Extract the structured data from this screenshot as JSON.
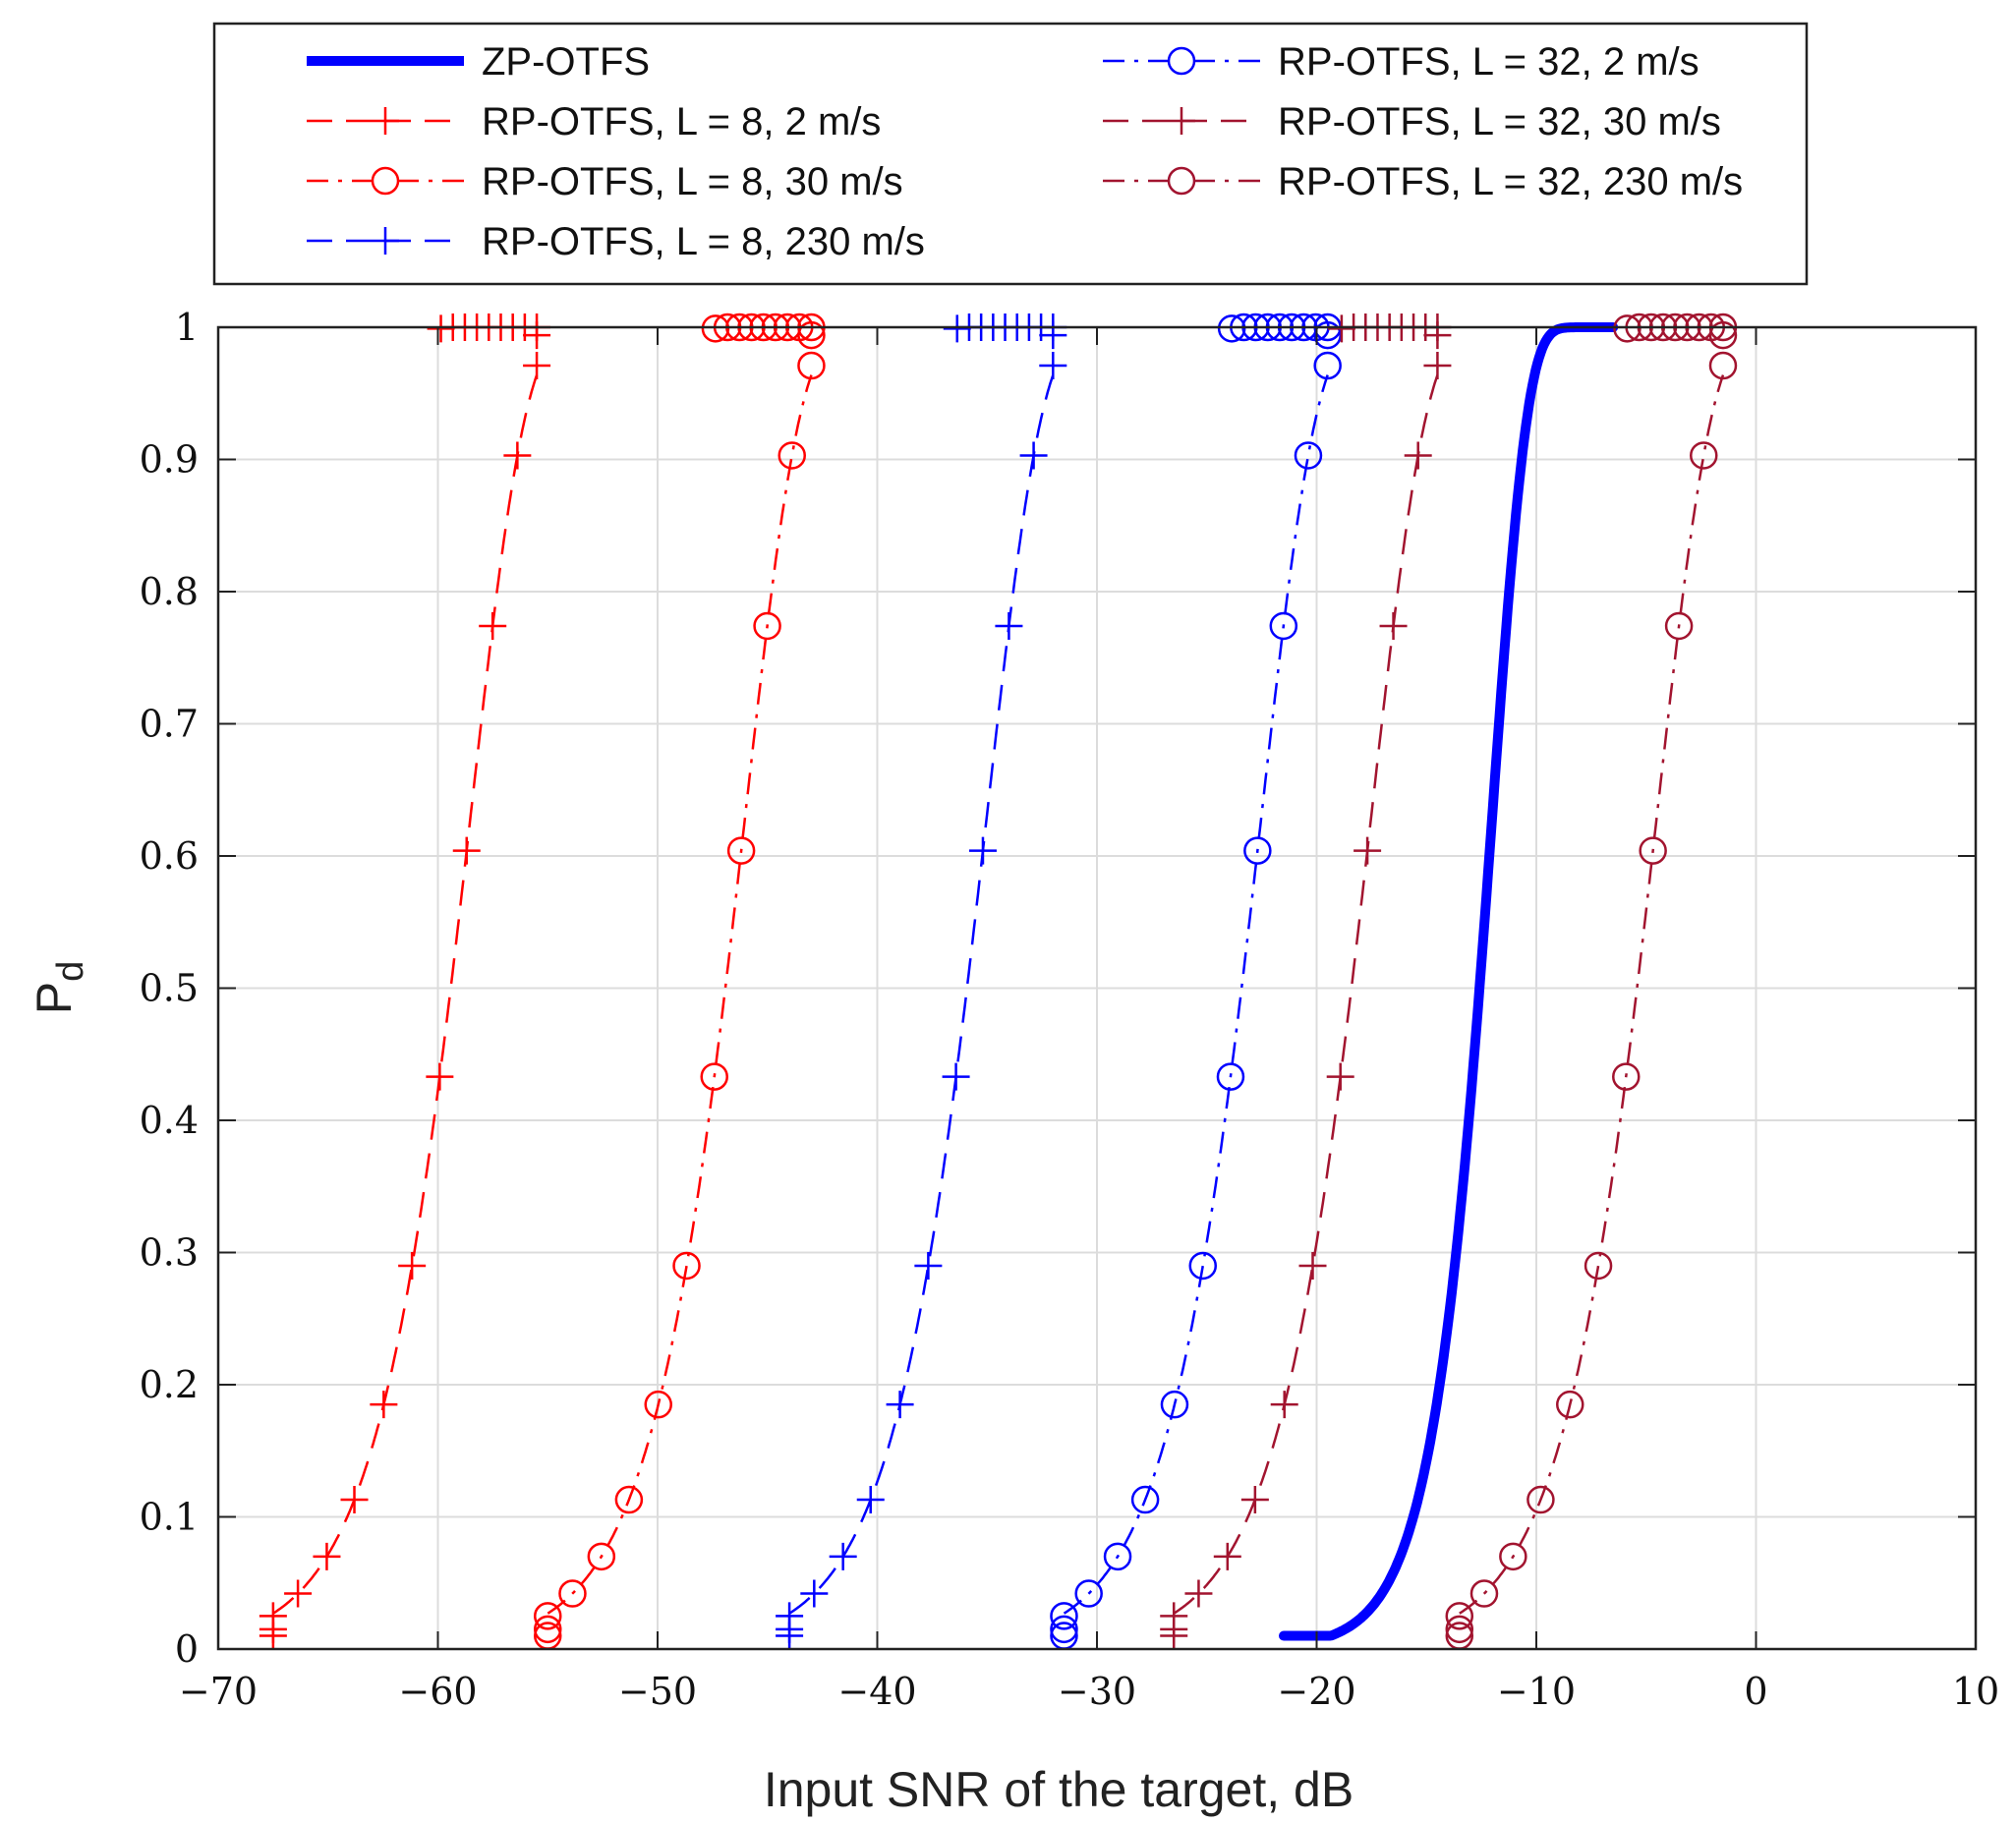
{
  "chart_data": {
    "type": "line",
    "title": "",
    "xlabel": "Input SNR of the target, dB",
    "ylabel_main": "P",
    "ylabel_sub": "d",
    "xlim": [
      -70,
      10
    ],
    "ylim": [
      0,
      1
    ],
    "xticks": [
      -70,
      -60,
      -50,
      -40,
      -30,
      -20,
      -10,
      0,
      10
    ],
    "xtick_labels": [
      "−70",
      "−60",
      "−50",
      "−40",
      "−30",
      "−20",
      "−10",
      "0",
      "10"
    ],
    "yticks": [
      0,
      0.1,
      0.2,
      0.3,
      0.4,
      0.5,
      0.6,
      0.7,
      0.8,
      0.9,
      1
    ],
    "ytick_labels": [
      "0",
      "0.1",
      "0.2",
      "0.3",
      "0.4",
      "0.5",
      "0.6",
      "0.7",
      "0.8",
      "0.9",
      "1"
    ],
    "grid": true,
    "legend_position": "top, outside plot, two columns",
    "marker_probabilities": [
      0.01,
      0.015,
      0.025,
      0.042,
      0.07,
      0.113,
      0.185,
      0.29,
      0.433,
      0.604,
      0.774,
      0.903,
      0.971,
      0.994,
      0.999,
      1,
      1,
      1,
      1,
      1,
      1,
      1,
      1
    ],
    "series": [
      {
        "name": "ZP-OTFS",
        "color": "#0000ff",
        "style": "solid",
        "marker": "none",
        "x_start": -21.5,
        "x_end": -6.5,
        "center": -12.0
      },
      {
        "name": "RP-OTFS, L = 8, 2 m/s",
        "color": "#ff0000",
        "style": "dashed",
        "marker": "plus",
        "x_start": -67.5,
        "x_end": -55.5,
        "center": -58.5
      },
      {
        "name": "RP-OTFS, L = 8, 30 m/s",
        "color": "#ff0000",
        "style": "dashdot",
        "marker": "circle",
        "x_start": -55.0,
        "x_end": -43.0,
        "center": -46.0
      },
      {
        "name": "RP-OTFS, L = 8, 230 m/s",
        "color": "#0000ff",
        "style": "dashed",
        "marker": "plus",
        "x_start": -44.0,
        "x_end": -32.0,
        "center": -35.0
      },
      {
        "name": "RP-OTFS, L = 32, 2 m/s",
        "color": "#0000ff",
        "style": "dashdot",
        "marker": "circle",
        "x_start": -31.5,
        "x_end": -19.5,
        "center": -22.5
      },
      {
        "name": "RP-OTFS, L = 32, 30 m/s",
        "color": "#a2142f",
        "style": "dashed",
        "marker": "plus",
        "x_start": -26.5,
        "x_end": -14.5,
        "center": -17.5
      },
      {
        "name": "RP-OTFS, L = 32, 230 m/s",
        "color": "#a2142f",
        "style": "dashdot",
        "marker": "circle",
        "x_start": -13.5,
        "x_end": -1.5,
        "center": -4.5
      }
    ]
  }
}
